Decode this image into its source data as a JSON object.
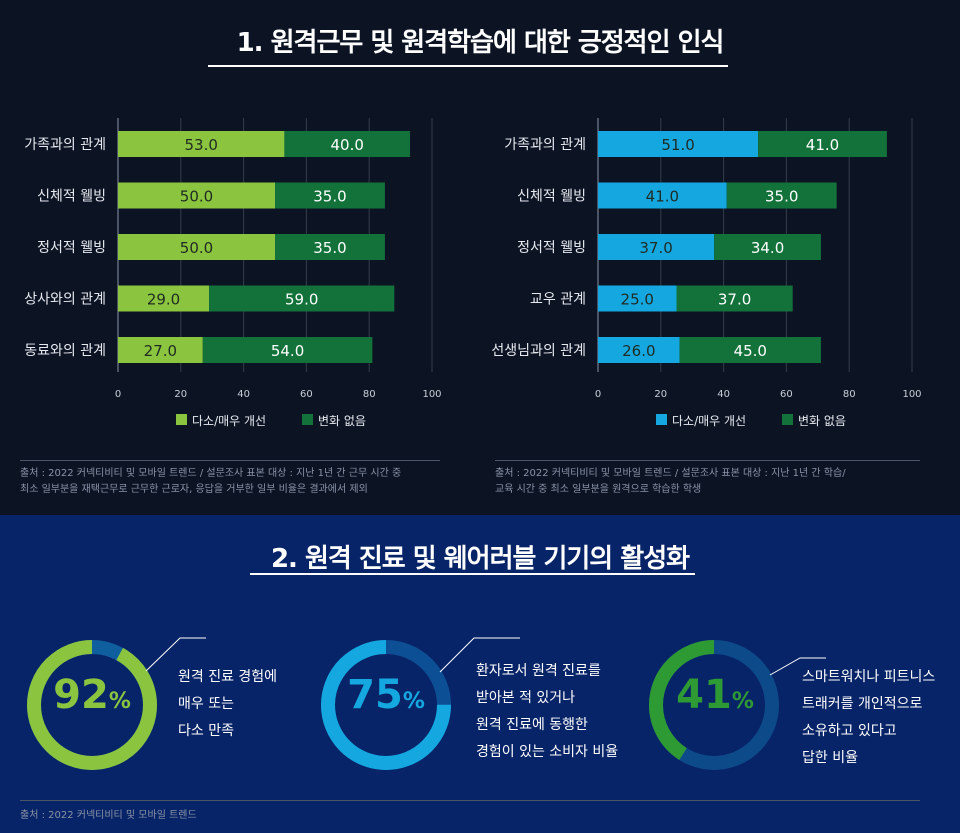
{
  "section1": {
    "title": "1. 원격근무 및 원격학습에 대한 긍정적인 인식"
  },
  "section2": {
    "title": "2. 원격 진료 및 웨어러블 기기의 활성화"
  },
  "colors": {
    "light_green": "#8bc53f",
    "dark_green": "#13723a",
    "sky_blue": "#15a8e0",
    "ring_green_bg": "#0f5e9e",
    "ring_blue_bg": "#0d4f94",
    "ring_dark_bg": "#0d4a8a",
    "dark_green_ring": "#2e9a33"
  },
  "chart_data": [
    {
      "type": "bar",
      "orientation": "horizontal",
      "stacked": true,
      "categories": [
        "가족과의 관계",
        "신체적 웰빙",
        "정서적 웰빙",
        "상사와의 관계",
        "동료와의 관계"
      ],
      "series": [
        {
          "name": "다소/매우 개선",
          "values": [
            53.0,
            50.0,
            50.0,
            29.0,
            27.0
          ],
          "labels": [
            "53.0",
            "50.0",
            "50.0",
            "29.0",
            "27.0"
          ]
        },
        {
          "name": "변화 없음",
          "values": [
            40.0,
            35.0,
            35.0,
            59.0,
            54.0
          ],
          "labels": [
            "40.0",
            "35.0",
            "35.0",
            "59.0",
            "54.0"
          ]
        }
      ],
      "xlim": [
        0,
        100
      ],
      "xticks": [
        "0",
        "20",
        "40",
        "60",
        "80",
        "100"
      ],
      "grid": true,
      "legend": "bottom",
      "source": "출처 : 2022 커넥티비티 및 모바일 트렌드 / 설문조사 표본 대상 : 지난 1년 간 근무 시간 중 최소 일부분을 재택근무로 근무한 근로자, 응답을 거부한 일부 비율은 결과에서 제외",
      "source_lines": [
        "출처 : 2022 커넥티비티 및 모바일 트렌드 / 설문조사 표본 대상 : 지난 1년 간 근무 시간 중",
        "최소 일부분을 재택근무로 근무한 근로자, 응답을 거부한 일부 비율은 결과에서 제외"
      ]
    },
    {
      "type": "bar",
      "orientation": "horizontal",
      "stacked": true,
      "categories": [
        "가족과의 관계",
        "신체적 웰빙",
        "정서적 웰빙",
        "교우 관계",
        "선생님과의 관계"
      ],
      "series": [
        {
          "name": "다소/매우 개선",
          "values": [
            51.0,
            41.0,
            37.0,
            25.0,
            26.0
          ],
          "labels": [
            "51.0",
            "41.0",
            "37.0",
            "25.0",
            "26.0"
          ]
        },
        {
          "name": "변화 없음",
          "values": [
            41.0,
            35.0,
            34.0,
            37.0,
            45.0
          ],
          "labels": [
            "41.0",
            "35.0",
            "34.0",
            "37.0",
            "45.0"
          ]
        }
      ],
      "xlim": [
        0,
        100
      ],
      "xticks": [
        "0",
        "20",
        "40",
        "60",
        "80",
        "100"
      ],
      "grid": true,
      "legend": "bottom",
      "source_lines": [
        "출처 : 2022 커넥티비티 및 모바일 트렌드 / 설문조사 표본 대상 : 지난 1년 간 학습/",
        "교육 시간 중 최소 일부분을 원격으로 학습한 학생"
      ]
    },
    {
      "type": "pie",
      "style": "donut",
      "values": [
        92,
        8
      ],
      "value_label": "92",
      "unit": "%",
      "description_lines": [
        "원격 진료 경험에",
        "매우 또는",
        "다소 만족"
      ]
    },
    {
      "type": "pie",
      "style": "donut",
      "values": [
        75,
        25
      ],
      "value_label": "75",
      "unit": "%",
      "description_lines": [
        "환자로서 원격 진료를",
        "받아본 적 있거나",
        "원격 진료에 동행한",
        "경험이 있는 소비자 비율"
      ]
    },
    {
      "type": "pie",
      "style": "donut",
      "values": [
        41,
        59
      ],
      "value_label": "41",
      "unit": "%",
      "description_lines": [
        "스마트워치나 피트니스",
        "트래커를 개인적으로",
        "소유하고 있다고",
        "답한 비율"
      ]
    }
  ],
  "section2_source": "출처 : 2022 커넥티비티 및 모바일 트렌드"
}
